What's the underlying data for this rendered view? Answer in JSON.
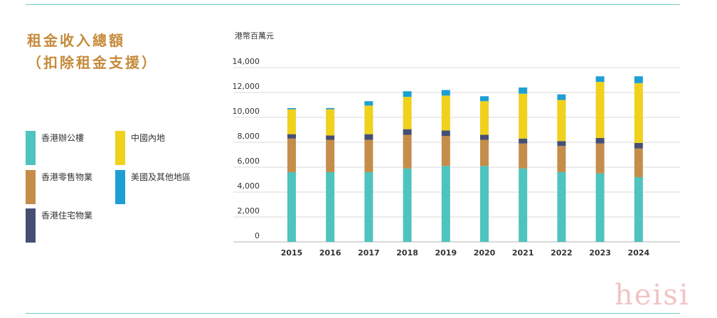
{
  "title": {
    "line1": "租金收入總額",
    "line2": "（扣除租金支援）"
  },
  "legend": [
    {
      "label": "香港辦公樓",
      "color": "#4fc3bd"
    },
    {
      "label": "中國內地",
      "color": "#f0d11c"
    },
    {
      "label": "香港零售物業",
      "color": "#c48e4a"
    },
    {
      "label": "美國及其他地區",
      "color": "#1e9fd4"
    },
    {
      "label": "香港住宅物業",
      "color": "#454f74"
    }
  ],
  "watermark": "heisi",
  "chart_data": {
    "type": "bar",
    "stacked": true,
    "unit_label": "港幣百萬元",
    "categories": [
      "2015",
      "2016",
      "2017",
      "2018",
      "2019",
      "2020",
      "2021",
      "2022",
      "2023",
      "2024"
    ],
    "series": [
      {
        "name": "香港辦公樓",
        "color": "#4fc3bd",
        "values": [
          5600,
          5600,
          5600,
          5900,
          6100,
          6100,
          5900,
          5600,
          5500,
          5200
        ]
      },
      {
        "name": "香港零售物業",
        "color": "#c48e4a",
        "values": [
          2700,
          2600,
          2600,
          2700,
          2400,
          2100,
          2000,
          2100,
          2400,
          2300
        ]
      },
      {
        "name": "香港住宅物業",
        "color": "#454f74",
        "values": [
          350,
          350,
          450,
          450,
          450,
          400,
          400,
          400,
          450,
          450
        ]
      },
      {
        "name": "中國內地",
        "color": "#f0d11c",
        "values": [
          2000,
          2100,
          2300,
          2600,
          2800,
          2700,
          3600,
          3300,
          4500,
          4800
        ]
      },
      {
        "name": "美國及其他地區",
        "color": "#1e9fd4",
        "values": [
          100,
          100,
          350,
          450,
          450,
          400,
          500,
          450,
          450,
          550
        ]
      }
    ],
    "y_ticks": [
      "0",
      "2,000",
      "4,000",
      "6,000",
      "8,000",
      "10,000",
      "12,000",
      "14,000"
    ],
    "ylim": [
      0,
      14000
    ],
    "grid": true
  }
}
